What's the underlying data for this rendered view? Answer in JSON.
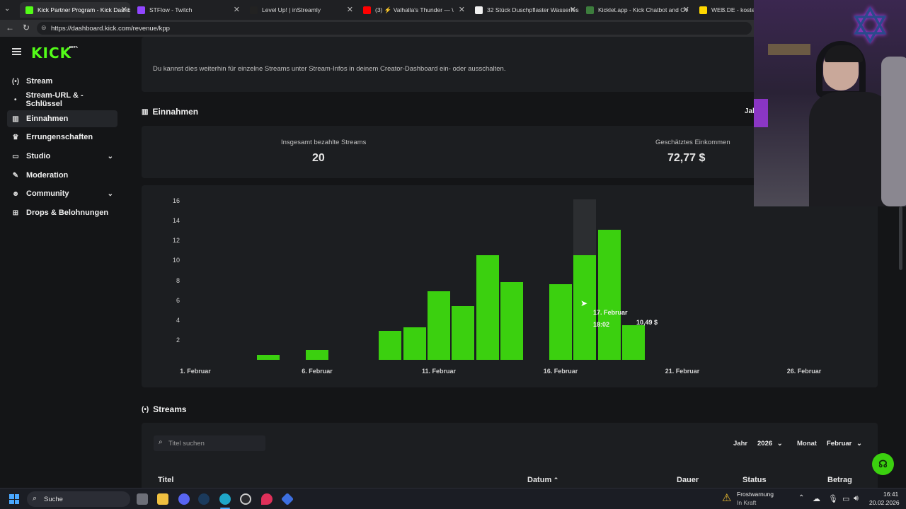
{
  "browser": {
    "tabs": [
      {
        "title": "Kick Partner Program - Kick Dashb",
        "color": "#53fc18",
        "active": true
      },
      {
        "title": "STFlow - Twitch",
        "color": "#9146ff",
        "active": false
      },
      {
        "title": "Level Up! | inStreamly",
        "color": "#222222",
        "active": false
      },
      {
        "title": "(3) ⚡ Valhalla's Thunder — \\",
        "color": "#ff0000",
        "active": false
      },
      {
        "title": "32 Stück Duschpflaster Wasserfes",
        "color": "#f0f0f0",
        "active": false
      },
      {
        "title": "Kicklet.app - Kick Chatbot and Ov",
        "color": "#3d7d3d",
        "active": false
      },
      {
        "title": "WEB.DE - kostenlo",
        "color": "#ffd800",
        "active": false
      }
    ],
    "url": "https://dashboard.kick.com/revenue/kpp"
  },
  "sidebar": {
    "logo": "KICK",
    "logo_badge": "BETA",
    "items": [
      {
        "label": "Stream",
        "icon": "broadcast-icon",
        "glyph": "(•)"
      },
      {
        "label": "Stream-URL & -Schlüssel",
        "icon": "key-icon",
        "glyph": "•"
      },
      {
        "label": "Einnahmen",
        "icon": "chart-icon",
        "glyph": "▥"
      },
      {
        "label": "Errungenschaften",
        "icon": "trophy-icon",
        "glyph": "♛"
      },
      {
        "label": "Studio",
        "icon": "studio-icon",
        "glyph": "▭"
      },
      {
        "label": "Moderation",
        "icon": "wrench-icon",
        "glyph": "✎"
      },
      {
        "label": "Community",
        "icon": "community-icon",
        "glyph": "☻"
      },
      {
        "label": "Drops & Belohnungen",
        "icon": "gift-icon",
        "glyph": "⊞"
      }
    ]
  },
  "notice": "Du kannst dies weiterhin für einzelne Streams unter Stream-Infos in deinem Creator-Dashboard ein- oder ausschalten.",
  "earnings": {
    "title": "Einnahmen",
    "right_cut_label": "Jal",
    "stat1_label": "Insgesamt bezahlte Streams",
    "stat1_value": "20",
    "stat2_label": "Geschätztes Einkommen",
    "stat2_value": "72,77 $"
  },
  "chart_data": {
    "type": "bar",
    "y_ticks": [
      "16",
      "14",
      "12",
      "10",
      "8",
      "6",
      "4",
      "2"
    ],
    "ylim": [
      0,
      16
    ],
    "x_tick_labels": [
      "1. Februar",
      "6. Februar",
      "11. Februar",
      "16. Februar",
      "21. Februar",
      "26. Februar"
    ],
    "bars": [
      {
        "day": 4,
        "value": 0.5
      },
      {
        "day": 6,
        "value": 1.0
      },
      {
        "day": 9,
        "value": 2.9
      },
      {
        "day": 10,
        "value": 3.3
      },
      {
        "day": 11,
        "value": 6.9
      },
      {
        "day": 12,
        "value": 5.4
      },
      {
        "day": 13,
        "value": 10.5
      },
      {
        "day": 14,
        "value": 7.8
      },
      {
        "day": 16,
        "value": 7.6
      },
      {
        "day": 17,
        "value": 10.5
      },
      {
        "day": 18,
        "value": 13.1
      },
      {
        "day": 19,
        "value": 3.5
      }
    ],
    "tooltip": {
      "date": "17. Februar",
      "time": "18:02",
      "amount": "10,49 $"
    }
  },
  "streams": {
    "title": "Streams",
    "search_placeholder": "Titel suchen",
    "year_label": "Jahr",
    "year_value": "2026",
    "month_label": "Monat",
    "month_value": "Februar",
    "columns": [
      "Titel",
      "Datum",
      "Dauer",
      "Status",
      "Betrag"
    ]
  },
  "taskbar": {
    "search": "Suche",
    "weather_line1": "Frostwarnung",
    "weather_line2": "In Kraft",
    "time": "16:41",
    "date": "20.02.2026"
  },
  "colors": {
    "brand": "#53fc18",
    "bar": "#3bd00f"
  }
}
